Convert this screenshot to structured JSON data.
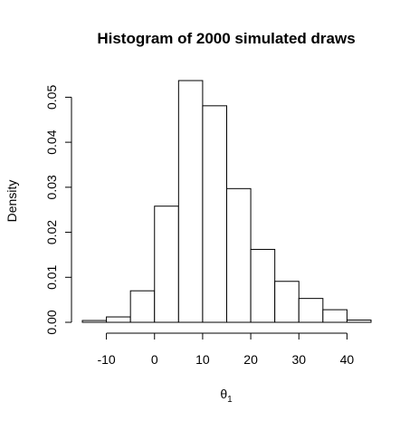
{
  "chart_data": {
    "type": "bar",
    "title": "Histogram of 2000 simulated draws",
    "xlabel_base": "θ",
    "xlabel_sub": "1",
    "ylabel": "Density",
    "bin_edges": [
      -15,
      -10,
      -5,
      0,
      5,
      10,
      15,
      20,
      25,
      30,
      35,
      40,
      45
    ],
    "values": [
      0.0004,
      0.0012,
      0.007,
      0.0258,
      0.0537,
      0.0481,
      0.0297,
      0.0162,
      0.0091,
      0.0053,
      0.0028,
      0.0005
    ],
    "xlim": [
      -15,
      45
    ],
    "ylim": [
      0,
      0.0537
    ],
    "xticks": [
      -10,
      0,
      10,
      20,
      30,
      40
    ],
    "xtick_labels": [
      "-10",
      "0",
      "10",
      "20",
      "30",
      "40"
    ],
    "yticks": [
      0,
      0.01,
      0.02,
      0.03,
      0.04,
      0.05
    ],
    "ytick_labels": [
      "0.00",
      "0.01",
      "0.02",
      "0.03",
      "0.04",
      "0.05"
    ],
    "grid": false,
    "bar_fill": "#ffffff",
    "bar_stroke": "#000000"
  }
}
